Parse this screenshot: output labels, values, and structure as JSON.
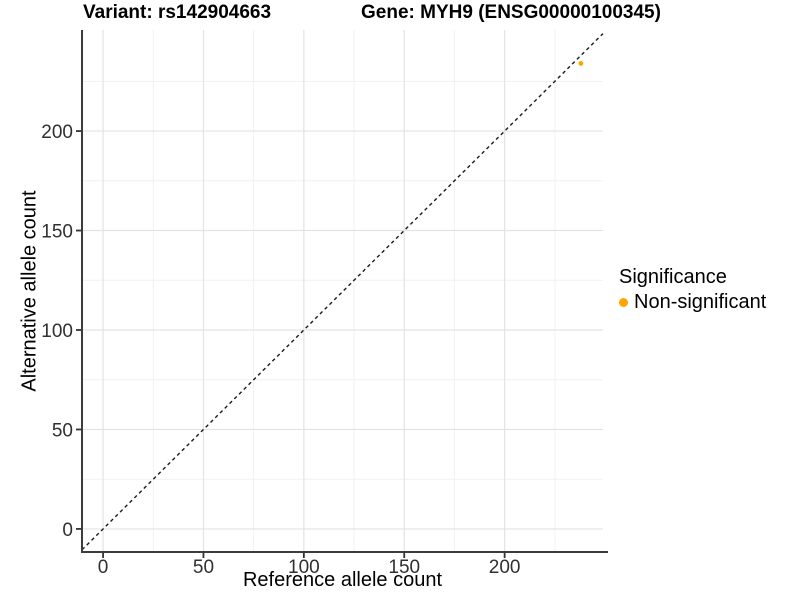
{
  "titles": {
    "left": "Variant: rs142904663",
    "right": "Gene: MYH9 (ENSG00000100345)"
  },
  "chart_data": {
    "type": "scatter",
    "xlabel": "Reference allele count",
    "ylabel": "Alternative allele count",
    "points": [
      {
        "x": 238,
        "y": 234,
        "series": "Non-significant"
      }
    ],
    "reference_line": {
      "kind": "identity",
      "slope": 1,
      "intercept": 0,
      "style": "dashed"
    },
    "x_ticks": [
      0,
      50,
      100,
      150,
      200
    ],
    "y_ticks": [
      0,
      50,
      100,
      150,
      200
    ],
    "x_minor_ticks": [
      25,
      75,
      125,
      175,
      225
    ],
    "y_minor_ticks": [
      25,
      75,
      125,
      175,
      225
    ],
    "xlim": [
      -10.5,
      249
    ],
    "ylim": [
      -11.6,
      250.8
    ],
    "grid": "major+minor",
    "legend": {
      "title": "Significance",
      "position": "right",
      "items": [
        {
          "label": "Non-significant",
          "color": "#FFA500"
        }
      ]
    },
    "colors": {
      "point": "#FFA500",
      "grid_major": "#E3E3E3",
      "grid_minor": "#F1F1F1",
      "axis_line": "#3C3C3C",
      "tick": "#333333",
      "identity_line": "#1A1A1A",
      "tick_label": "#303030"
    }
  }
}
